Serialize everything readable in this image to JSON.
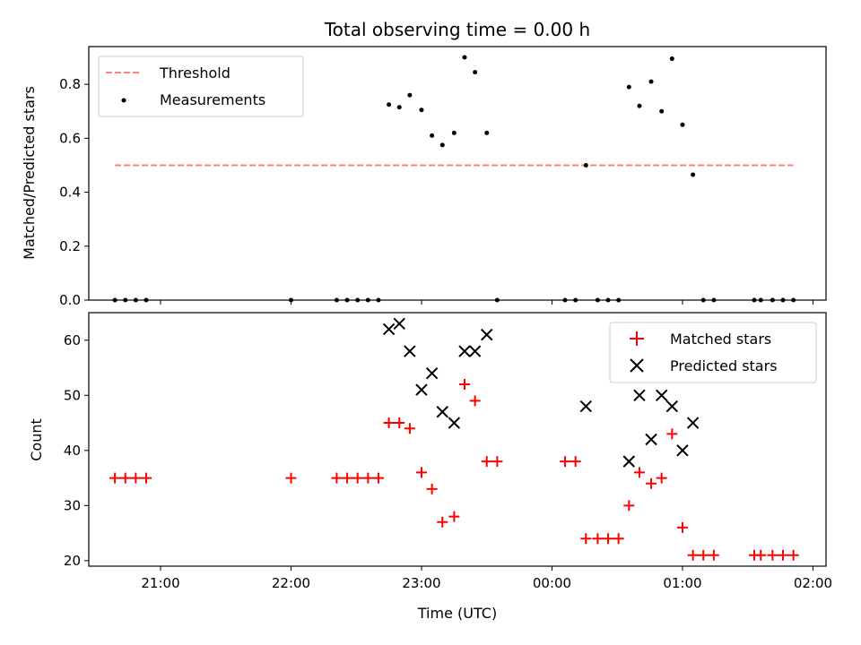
{
  "chart_data": [
    {
      "type": "scatter",
      "title": "Total observing time = 0.00 h",
      "xlabel": "",
      "ylabel": "Matched/Predicted stars",
      "xlim": [
        20.45,
        26.1
      ],
      "ylim": [
        0,
        0.94
      ],
      "yticks": [
        0.0,
        0.2,
        0.4,
        0.6,
        0.8
      ],
      "ytick_labels": [
        "0.0",
        "0.2",
        "0.4",
        "0.6",
        "0.8"
      ],
      "threshold": {
        "name": "Threshold",
        "value": 0.5,
        "x_range": [
          20.65,
          25.85
        ],
        "color": "#ff7f7f"
      },
      "series": [
        {
          "name": "Measurements",
          "color": "#000000",
          "x": [
            20.65,
            20.73,
            20.81,
            20.89,
            22.0,
            22.35,
            22.43,
            22.51,
            22.59,
            22.67,
            22.75,
            22.83,
            22.91,
            23.0,
            23.08,
            23.16,
            23.25,
            23.33,
            23.41,
            23.5,
            23.58,
            24.1,
            24.18,
            24.26,
            24.35,
            24.43,
            24.51,
            24.59,
            24.67,
            24.76,
            24.84,
            24.92,
            25.0,
            25.08,
            25.16,
            25.24,
            25.55,
            25.6,
            25.69,
            25.77,
            25.85
          ],
          "y": [
            0,
            0,
            0,
            0,
            0,
            0,
            0,
            0,
            0,
            0,
            0.725,
            0.715,
            0.76,
            0.705,
            0.61,
            0.575,
            0.62,
            0.9,
            0.845,
            0.62,
            0,
            0,
            0,
            0.5,
            0,
            0,
            0,
            0.79,
            0.72,
            0.81,
            0.7,
            0.895,
            0.65,
            0.465,
            0,
            0,
            0,
            0,
            0,
            0,
            0
          ]
        }
      ],
      "legend": "upper-left"
    },
    {
      "type": "scatter",
      "title": "",
      "xlabel": "Time (UTC)",
      "ylabel": "Count",
      "xlim": [
        20.45,
        26.1
      ],
      "ylim": [
        19,
        65
      ],
      "xticks": [
        21,
        22,
        23,
        24,
        25,
        26
      ],
      "xtick_labels": [
        "21:00",
        "22:00",
        "23:00",
        "00:00",
        "01:00",
        "02:00"
      ],
      "yticks": [
        20,
        30,
        40,
        50,
        60
      ],
      "ytick_labels": [
        "20",
        "30",
        "40",
        "50",
        "60"
      ],
      "series": [
        {
          "name": "Matched stars",
          "marker": "plus",
          "color": "#ff0000",
          "x": [
            20.65,
            20.73,
            20.81,
            20.89,
            22.0,
            22.35,
            22.43,
            22.51,
            22.59,
            22.67,
            22.75,
            22.83,
            22.91,
            23.0,
            23.08,
            23.16,
            23.25,
            23.33,
            23.41,
            23.5,
            23.58,
            24.1,
            24.18,
            24.26,
            24.35,
            24.43,
            24.51,
            24.59,
            24.67,
            24.76,
            24.84,
            24.92,
            25.0,
            25.08,
            25.16,
            25.24,
            25.55,
            25.6,
            25.69,
            25.77,
            25.85
          ],
          "y": [
            35,
            35,
            35,
            35,
            35,
            35,
            35,
            35,
            35,
            35,
            45,
            45,
            44,
            36,
            33,
            27,
            28,
            52,
            49,
            38,
            38,
            38,
            38,
            24,
            24,
            24,
            24,
            30,
            36,
            34,
            35,
            43,
            26,
            21,
            21,
            21,
            21,
            21,
            21,
            21,
            21
          ]
        },
        {
          "name": "Predicted stars",
          "marker": "x",
          "color": "#000000",
          "x": [
            22.75,
            22.83,
            22.91,
            23.0,
            23.08,
            23.16,
            23.25,
            23.33,
            23.41,
            23.5,
            24.26,
            24.59,
            24.67,
            24.76,
            24.84,
            24.92,
            25.0,
            25.08
          ],
          "y": [
            62,
            63,
            58,
            51,
            54,
            47,
            45,
            58,
            58,
            61,
            48,
            38,
            50,
            42,
            50,
            48,
            40,
            45
          ]
        }
      ],
      "legend": "upper-right"
    }
  ]
}
